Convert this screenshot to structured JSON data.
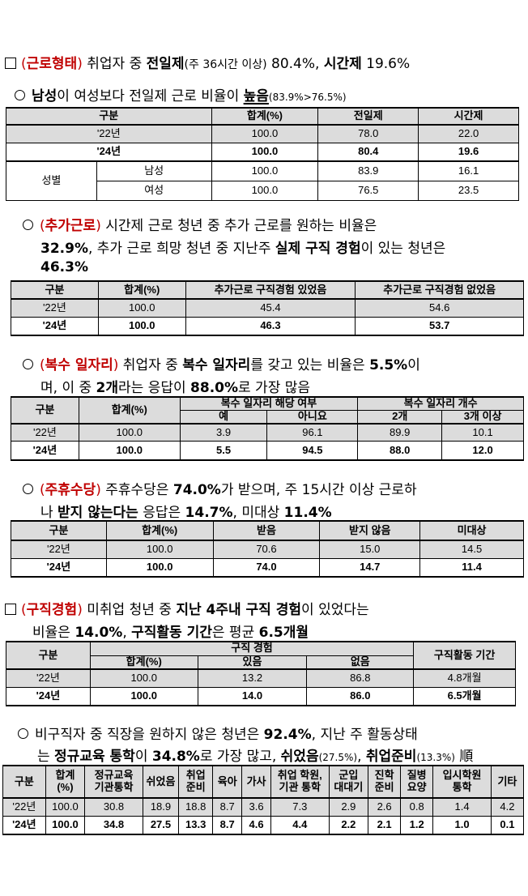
{
  "s1": {
    "tag": "근로형태",
    "pre": "(",
    "post": ")",
    "text1": " 취업자 중 ",
    "em1": "전일제",
    "small1": "(주 36시간 이상)",
    "text2": " 80.4%, ",
    "em2": "시간제",
    "text3": " 19.6%"
  },
  "s1a": {
    "em1": "남성",
    "text1": "이 여성보다 전일제 근로 비율이 ",
    "em2": "높음",
    "small1": "(83.9%>76.5%)"
  },
  "t1": {
    "h": [
      "구분",
      "합계(%)",
      "전일제",
      "시간제"
    ],
    "r22": [
      "'22년",
      "100.0",
      "78.0",
      "22.0"
    ],
    "r24": [
      "'24년",
      "100.0",
      "80.4",
      "19.6"
    ],
    "group": "성별",
    "male": [
      "남성",
      "100.0",
      "83.9",
      "16.1"
    ],
    "female": [
      "여성",
      "100.0",
      "76.5",
      "23.5"
    ]
  },
  "s2": {
    "tag": "추가근로",
    "text1": " 시간제 근로 청년 중 추가 근로를 원하는 비율은",
    "l2a": "32.9%",
    "l2b": ", 추가 근로 희망 청년 중 지난주 ",
    "l2c": "실제 구직 경험",
    "l2d": "이 있는 청년은",
    "l3": "46.3%"
  },
  "t2": {
    "h": [
      "구분",
      "합계(%)",
      "추가근로 구직경험 있었음",
      "추가근로 구직경험 없었음"
    ],
    "r22": [
      "'22년",
      "100.0",
      "45.4",
      "54.6"
    ],
    "r24": [
      "'24년",
      "100.0",
      "46.3",
      "53.7"
    ]
  },
  "s3": {
    "tag": "복수 일자리",
    "text1": " 취업자 중 ",
    "em1": "복수 일자리",
    "text2": "를 갖고 있는 비율은 ",
    "em2": "5.5%",
    "text3": "이",
    "l2a": "며, 이 중 ",
    "l2b": "2개",
    "l2c": "라는 응답이 ",
    "l2d": "88.0%",
    "l2e": "로 가장 많음"
  },
  "t3": {
    "h1": [
      "구분",
      "합계(%)",
      "복수 일자리 해당 여부",
      "복수 일자리 개수"
    ],
    "h2": [
      "예",
      "아니요",
      "2개",
      "3개 이상"
    ],
    "r22": [
      "'22년",
      "100.0",
      "3.9",
      "96.1",
      "89.9",
      "10.1"
    ],
    "r24": [
      "'24년",
      "100.0",
      "5.5",
      "94.5",
      "88.0",
      "12.0"
    ]
  },
  "s4": {
    "tag": "주휴수당",
    "text1": " 주휴수당은 ",
    "em1": "74.0%",
    "text2": "가 받으며, 주 15시간 이상 근로하",
    "l2a": "나 ",
    "l2b": "받지 않는다는",
    "l2c": " 응답은 ",
    "l2d": "14.7%",
    "l2e": ", 미대상 ",
    "l2f": "11.4%"
  },
  "t4": {
    "h": [
      "구분",
      "합계(%)",
      "받음",
      "받지 않음",
      "미대상"
    ],
    "r22": [
      "'22년",
      "100.0",
      "70.6",
      "15.0",
      "14.5"
    ],
    "r24": [
      "'24년",
      "100.0",
      "74.0",
      "14.7",
      "11.4"
    ]
  },
  "s5": {
    "tag": "구직경험",
    "text1": " 미취업 청년 중 ",
    "em1": "지난 4주내 구직 경험",
    "text2": "이 있었다는",
    "l2a": "비율은 ",
    "l2b": "14.0%",
    "l2c": ", ",
    "l2d": "구직활동 기간",
    "l2e": "은 평균 ",
    "l2f": "6.5개월"
  },
  "t5": {
    "h1": [
      "구분",
      "구직 경험",
      "구직활동 기간"
    ],
    "h2": [
      "합계(%)",
      "있음",
      "없음"
    ],
    "r22": [
      "'22년",
      "100.0",
      "13.2",
      "86.8",
      "4.8개월"
    ],
    "r24": [
      "'24년",
      "100.0",
      "14.0",
      "86.0",
      "6.5개월"
    ]
  },
  "s6": {
    "text1": "비구직자 중 직장을 원하지 않은 청년은 ",
    "em1": "92.4%",
    "text2": ", 지난 주 활동상태",
    "l2a": "는 ",
    "l2b": "정규교육 통학",
    "l2c": "이 ",
    "l2d": "34.8%",
    "l2e": "로 가장 많고, ",
    "l2f": "쉬었음",
    "l2g": "(27.5%)",
    "l2h": ", ",
    "l2i": "취업준비",
    "l2j": "(13.3%)",
    "l2k": " 順"
  },
  "t6": {
    "h": [
      [
        "구분"
      ],
      [
        "합계",
        "(%)"
      ],
      [
        "정규교육",
        "기관통학"
      ],
      [
        "쉬었음"
      ],
      [
        "취업",
        "준비"
      ],
      [
        "육아"
      ],
      [
        "가사"
      ],
      [
        "취업 학원,",
        "기관 통학"
      ],
      [
        "군입",
        "대대기"
      ],
      [
        "진학",
        "준비"
      ],
      [
        "질병",
        "요양"
      ],
      [
        "입시학원",
        "통학"
      ],
      [
        "기타"
      ]
    ],
    "r22": [
      "'22년",
      "100.0",
      "30.8",
      "18.9",
      "18.8",
      "8.7",
      "3.6",
      "7.3",
      "2.9",
      "2.6",
      "0.8",
      "1.4",
      "4.2"
    ],
    "r24": [
      "'24년",
      "100.0",
      "34.8",
      "27.5",
      "13.3",
      "8.7",
      "4.6",
      "4.4",
      "2.2",
      "2.1",
      "1.2",
      "1.0",
      "0.1"
    ]
  }
}
